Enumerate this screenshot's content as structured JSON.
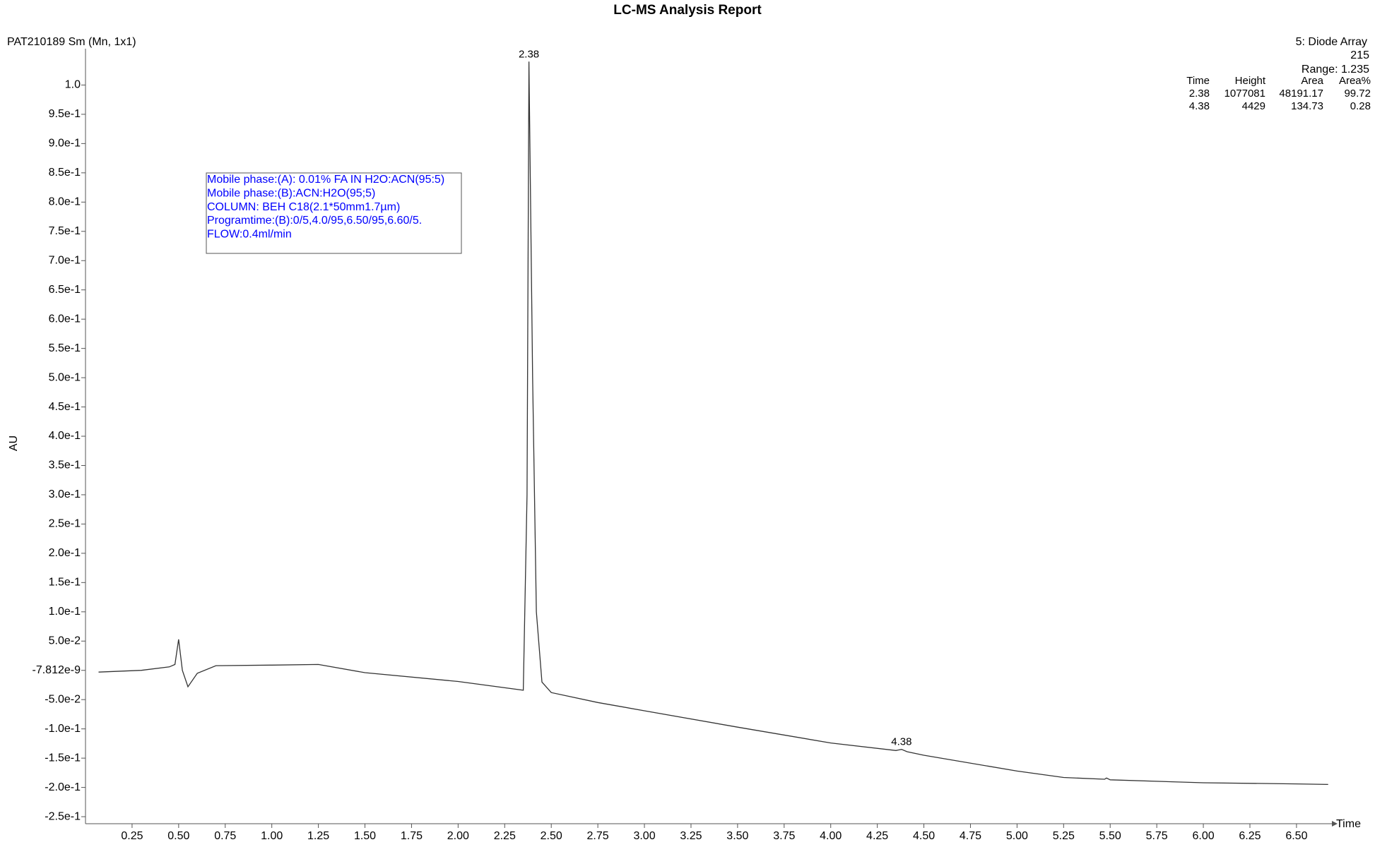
{
  "chart_data": {
    "type": "line",
    "title": "LC-MS Analysis Report",
    "sample": "PAT210189 Sm (Mn, 1x1)",
    "detector": "5: Diode Array",
    "wavelength": 215,
    "range": "Range: 1.235",
    "y_label": "AU",
    "x_label": "Time",
    "conditions": [
      "Mobile phase:(A): 0.01% FA IN H2O:ACN(95:5)",
      "Mobile phase:(B):ACN:H2O(95;5)",
      "COLUMN: BEH C18(2.1*50mm1.7µm)",
      "Programtime:(B):0/5,4.0/95,6.50/95,6.60/5.",
      "FLOW:0.4ml/min"
    ],
    "table": {
      "columns": [
        "Time",
        "Height",
        "Area",
        "Area%"
      ],
      "rows": [
        [
          2.38,
          1077081,
          48191.17,
          99.72
        ],
        [
          4.38,
          4429,
          134.73,
          0.28
        ]
      ]
    },
    "peaks": {
      "x": [
        2.38,
        4.38
      ],
      "y": [
        1.04,
        -0.135
      ]
    },
    "x": [
      0.07,
      0.3,
      0.45,
      0.48,
      0.5,
      0.52,
      0.55,
      0.6,
      0.7,
      1.0,
      1.25,
      1.5,
      2.0,
      2.35,
      2.37,
      2.38,
      2.4,
      2.42,
      2.45,
      2.5,
      2.75,
      3.0,
      3.5,
      4.0,
      4.35,
      4.38,
      4.41,
      4.5,
      5.0,
      5.25,
      5.47,
      5.48,
      5.5,
      6.0,
      6.5,
      6.67
    ],
    "series": [
      {
        "name": "215",
        "color": "#333333",
        "values": [
          -0.003,
          0.0,
          0.006,
          0.01,
          0.053,
          0.0,
          -0.028,
          -0.005,
          0.008,
          0.009,
          0.01,
          -0.004,
          -0.019,
          -0.034,
          0.3,
          1.04,
          0.5,
          0.1,
          -0.02,
          -0.038,
          -0.055,
          -0.069,
          -0.097,
          -0.124,
          -0.137,
          -0.135,
          -0.139,
          -0.145,
          -0.172,
          -0.183,
          -0.186,
          -0.184,
          -0.187,
          -0.192,
          -0.194,
          -0.195
        ]
      }
    ],
    "xlim": [
      0,
      6.69
    ],
    "ylim": [
      -0.262,
      1.05
    ],
    "xticks": [
      0.25,
      {
        "value": 0.5,
        "label": "0.50"
      },
      0.75,
      {
        "value": 1,
        "label": "1.00"
      },
      1.25,
      {
        "value": 1.5,
        "label": "1.50"
      },
      1.75,
      {
        "value": 2,
        "label": "2.00"
      },
      2.25,
      {
        "value": 2.5,
        "label": "2.50"
      },
      2.75,
      {
        "value": 3,
        "label": "3.00"
      },
      3.25,
      {
        "value": 3.5,
        "label": "3.50"
      },
      3.75,
      {
        "value": 4,
        "label": "4.00"
      },
      4.25,
      {
        "value": 4.5,
        "label": "4.50"
      },
      4.75,
      {
        "value": 5,
        "label": "5.00"
      },
      5.25,
      {
        "value": 5.5,
        "label": "5.50"
      },
      5.75,
      {
        "value": 6,
        "label": "6.00"
      },
      6.25,
      {
        "value": 6.5,
        "label": "6.50"
      }
    ],
    "yticks": [
      {
        "value": 1,
        "label": "1.0"
      },
      {
        "value": 0.95,
        "label": "9.5e-1"
      },
      {
        "value": 0.9,
        "label": "9.0e-1"
      },
      {
        "value": 0.85,
        "label": "8.5e-1"
      },
      {
        "value": 0.8,
        "label": "8.0e-1"
      },
      {
        "value": 0.75,
        "label": "7.5e-1"
      },
      {
        "value": 0.7,
        "label": "7.0e-1"
      },
      {
        "value": 0.65,
        "label": "6.5e-1"
      },
      {
        "value": 0.6,
        "label": "6.0e-1"
      },
      {
        "value": 0.55,
        "label": "5.5e-1"
      },
      {
        "value": 0.5,
        "label": "5.0e-1"
      },
      {
        "value": 0.45,
        "label": "4.5e-1"
      },
      {
        "value": 0.4,
        "label": "4.0e-1"
      },
      {
        "value": 0.35,
        "label": "3.5e-1"
      },
      {
        "value": 0.3,
        "label": "3.0e-1"
      },
      {
        "value": 0.25,
        "label": "2.5e-1"
      },
      {
        "value": 0.2,
        "label": "2.0e-1"
      },
      {
        "value": 0.15,
        "label": "1.5e-1"
      },
      {
        "value": 0.1,
        "label": "1.0e-1"
      },
      {
        "value": 0.05,
        "label": "5.0e-2"
      },
      {
        "value": -7.812e-09,
        "label": "-7.812e-9"
      },
      {
        "value": -0.05,
        "label": "-5.0e-2"
      },
      {
        "value": -0.1,
        "label": "-1.0e-1"
      },
      {
        "value": -0.15,
        "label": "-1.5e-1"
      },
      {
        "value": -0.2,
        "label": "-2.0e-1"
      },
      {
        "value": -0.25,
        "label": "-2.5e-1"
      }
    ],
    "grid": false
  }
}
